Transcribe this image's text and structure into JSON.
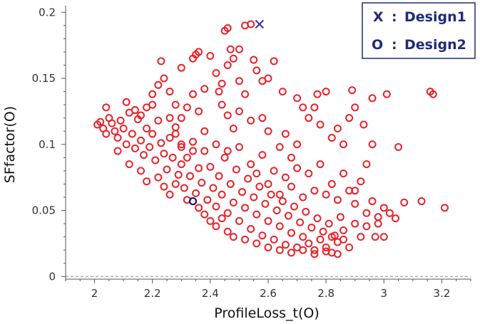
{
  "chart_data": {
    "type": "scatter",
    "xlabel": "ProfileLoss_t(O)",
    "ylabel": "SFfactor(O)",
    "xlim": [
      1.9,
      3.3
    ],
    "ylim": [
      -0.002,
      0.205
    ],
    "xticks": [
      2,
      2.2,
      2.4,
      2.6,
      2.8,
      3,
      3.2
    ],
    "yticks": [
      0,
      0.05,
      0.1,
      0.15,
      0.2
    ],
    "grid": false,
    "legend_position": "top-right",
    "legend": [
      {
        "symbol": "X",
        "separator": ":",
        "label": "Design1"
      },
      {
        "symbol": "O",
        "separator": ":",
        "label": "Design2"
      }
    ],
    "colors": {
      "cloud": "#e8232a",
      "design1": "#2e2e9a",
      "design2": "#16166e"
    },
    "series": [
      {
        "name": "Design1",
        "marker": "x",
        "points": [
          [
            2.57,
            0.191
          ]
        ]
      },
      {
        "name": "Design2",
        "marker": "o",
        "points": [
          [
            2.34,
            0.057
          ]
        ]
      },
      {
        "name": "Samples",
        "marker": "o",
        "points": [
          [
            2.01,
            0.115
          ],
          [
            2.02,
            0.117
          ],
          [
            2.03,
            0.112
          ],
          [
            2.04,
            0.128
          ],
          [
            2.05,
            0.12
          ],
          [
            2.04,
            0.108
          ],
          [
            2.06,
            0.116
          ],
          [
            2.07,
            0.11
          ],
          [
            2.08,
            0.105
          ],
          [
            2.09,
            0.118
          ],
          [
            2.1,
            0.112
          ],
          [
            2.11,
            0.132
          ],
          [
            2.12,
            0.124
          ],
          [
            2.11,
            0.1
          ],
          [
            2.13,
            0.108
          ],
          [
            2.14,
            0.097
          ],
          [
            2.15,
            0.119
          ],
          [
            2.16,
            0.103
          ],
          [
            2.17,
            0.092
          ],
          [
            2.18,
            0.112
          ],
          [
            2.19,
            0.098
          ],
          [
            2.2,
            0.13
          ],
          [
            2.21,
            0.088
          ],
          [
            2.2,
            0.108
          ],
          [
            2.22,
            0.118
          ],
          [
            2.23,
            0.101
          ],
          [
            2.24,
            0.093
          ],
          [
            2.25,
            0.081
          ],
          [
            2.26,
            0.105
          ],
          [
            2.27,
            0.09
          ],
          [
            2.28,
            0.113
          ],
          [
            2.29,
            0.077
          ],
          [
            2.3,
            0.098
          ],
          [
            2.3,
            0.085
          ],
          [
            2.31,
            0.067
          ],
          [
            2.32,
            0.09
          ],
          [
            2.33,
            0.076
          ],
          [
            2.34,
            0.102
          ],
          [
            2.35,
            0.063
          ],
          [
            2.36,
            0.082
          ],
          [
            2.37,
            0.071
          ],
          [
            2.38,
            0.095
          ],
          [
            2.39,
            0.058
          ],
          [
            2.4,
            0.083
          ],
          [
            2.41,
            0.067
          ],
          [
            2.42,
            0.053
          ],
          [
            2.43,
            0.076
          ],
          [
            2.44,
            0.062
          ],
          [
            2.45,
            0.09
          ],
          [
            2.46,
            0.048
          ],
          [
            2.47,
            0.07
          ],
          [
            2.48,
            0.056
          ],
          [
            2.49,
            0.081
          ],
          [
            2.5,
            0.042
          ],
          [
            2.51,
            0.064
          ],
          [
            2.52,
            0.052
          ],
          [
            2.53,
            0.074
          ],
          [
            2.54,
            0.036
          ],
          [
            2.55,
            0.06
          ],
          [
            2.56,
            0.047
          ],
          [
            2.57,
            0.068
          ],
          [
            2.58,
            0.031
          ],
          [
            2.59,
            0.055
          ],
          [
            2.6,
            0.042
          ],
          [
            2.61,
            0.062
          ],
          [
            2.62,
            0.028
          ],
          [
            2.63,
            0.05
          ],
          [
            2.64,
            0.038
          ],
          [
            2.65,
            0.057
          ],
          [
            2.66,
            0.024
          ],
          [
            2.67,
            0.046
          ],
          [
            2.68,
            0.033
          ],
          [
            2.69,
            0.053
          ],
          [
            2.7,
            0.022
          ],
          [
            2.71,
            0.041
          ],
          [
            2.72,
            0.03
          ],
          [
            2.73,
            0.049
          ],
          [
            2.74,
            0.025
          ],
          [
            2.75,
            0.037
          ],
          [
            2.76,
            0.02
          ],
          [
            2.77,
            0.044
          ],
          [
            2.78,
            0.028
          ],
          [
            2.79,
            0.034
          ],
          [
            2.8,
            0.022
          ],
          [
            2.81,
            0.04
          ],
          [
            2.82,
            0.018
          ],
          [
            2.83,
            0.031
          ],
          [
            2.84,
            0.026
          ],
          [
            2.85,
            0.045
          ],
          [
            2.86,
            0.028
          ],
          [
            2.08,
            0.095
          ],
          [
            2.12,
            0.085
          ],
          [
            2.16,
            0.08
          ],
          [
            2.18,
            0.072
          ],
          [
            2.22,
            0.075
          ],
          [
            2.24,
            0.068
          ],
          [
            2.26,
            0.062
          ],
          [
            2.28,
            0.07
          ],
          [
            2.32,
            0.058
          ],
          [
            2.36,
            0.052
          ],
          [
            2.38,
            0.047
          ],
          [
            2.4,
            0.042
          ],
          [
            2.42,
            0.038
          ],
          [
            2.44,
            0.044
          ],
          [
            2.46,
            0.034
          ],
          [
            2.48,
            0.03
          ],
          [
            2.52,
            0.028
          ],
          [
            2.56,
            0.025
          ],
          [
            2.6,
            0.022
          ],
          [
            2.64,
            0.02
          ],
          [
            2.68,
            0.018
          ],
          [
            2.72,
            0.02
          ],
          [
            2.76,
            0.017
          ],
          [
            2.8,
            0.019
          ],
          [
            2.84,
            0.017
          ],
          [
            2.88,
            0.022
          ],
          [
            2.22,
            0.145
          ],
          [
            2.24,
            0.15
          ],
          [
            2.26,
            0.14
          ],
          [
            2.28,
            0.13
          ],
          [
            2.3,
            0.12
          ],
          [
            2.32,
            0.128
          ],
          [
            2.34,
            0.138
          ],
          [
            2.36,
            0.125
          ],
          [
            2.38,
            0.11
          ],
          [
            2.2,
            0.138
          ],
          [
            2.18,
            0.128
          ],
          [
            2.16,
            0.122
          ],
          [
            2.14,
            0.126
          ],
          [
            2.23,
            0.163
          ],
          [
            2.3,
            0.158
          ],
          [
            2.34,
            0.165
          ],
          [
            2.35,
            0.168
          ],
          [
            2.36,
            0.17
          ],
          [
            2.38,
            0.142
          ],
          [
            2.4,
            0.167
          ],
          [
            2.42,
            0.154
          ],
          [
            2.43,
            0.14
          ],
          [
            2.44,
            0.146
          ],
          [
            2.45,
            0.186
          ],
          [
            2.46,
            0.188
          ],
          [
            2.47,
            0.172
          ],
          [
            2.48,
            0.165
          ],
          [
            2.46,
            0.16
          ],
          [
            2.5,
            0.172
          ],
          [
            2.52,
            0.19
          ],
          [
            2.54,
            0.191
          ],
          [
            2.55,
            0.164
          ],
          [
            2.56,
            0.156
          ],
          [
            2.58,
            0.148
          ],
          [
            2.6,
            0.15
          ],
          [
            2.62,
            0.163
          ],
          [
            2.65,
            0.14
          ],
          [
            2.7,
            0.135
          ],
          [
            2.5,
            0.148
          ],
          [
            2.52,
            0.138
          ],
          [
            2.44,
            0.13
          ],
          [
            2.46,
            0.122
          ],
          [
            2.48,
            0.112
          ],
          [
            2.5,
            0.125
          ],
          [
            2.54,
            0.118
          ],
          [
            2.58,
            0.12
          ],
          [
            2.6,
            0.11
          ],
          [
            2.64,
            0.098
          ],
          [
            2.66,
            0.108
          ],
          [
            2.68,
            0.09
          ],
          [
            2.7,
            0.1
          ],
          [
            2.72,
            0.128
          ],
          [
            2.74,
            0.12
          ],
          [
            2.76,
            0.128
          ],
          [
            2.78,
            0.115
          ],
          [
            2.77,
            0.138
          ],
          [
            2.8,
            0.14
          ],
          [
            2.82,
            0.105
          ],
          [
            2.84,
            0.112
          ],
          [
            2.86,
            0.1
          ],
          [
            2.88,
            0.12
          ],
          [
            2.9,
            0.128
          ],
          [
            2.89,
            0.141
          ],
          [
            2.93,
            0.115
          ],
          [
            2.96,
            0.135
          ],
          [
            3.01,
            0.138
          ],
          [
            3.16,
            0.14
          ],
          [
            3.17,
            0.138
          ],
          [
            2.26,
            0.12
          ],
          [
            2.28,
            0.108
          ],
          [
            2.3,
            0.1
          ],
          [
            2.34,
            0.095
          ],
          [
            2.42,
            0.1
          ],
          [
            2.46,
            0.095
          ],
          [
            2.5,
            0.098
          ],
          [
            2.54,
            0.085
          ],
          [
            2.58,
            0.092
          ],
          [
            2.62,
            0.08
          ],
          [
            2.66,
            0.075
          ],
          [
            2.7,
            0.082
          ],
          [
            2.74,
            0.078
          ],
          [
            2.78,
            0.085
          ],
          [
            2.82,
            0.07
          ],
          [
            2.86,
            0.078
          ],
          [
            2.9,
            0.065
          ],
          [
            2.94,
            0.085
          ],
          [
            2.96,
            0.1
          ],
          [
            3.05,
            0.098
          ],
          [
            2.92,
            0.072
          ],
          [
            2.88,
            0.065
          ],
          [
            2.84,
            0.058
          ],
          [
            2.8,
            0.062
          ],
          [
            2.76,
            0.065
          ],
          [
            2.72,
            0.06
          ],
          [
            2.68,
            0.068
          ],
          [
            2.64,
            0.062
          ],
          [
            2.6,
            0.07
          ],
          [
            2.56,
            0.078
          ],
          [
            2.9,
            0.055
          ],
          [
            2.94,
            0.048
          ],
          [
            2.96,
            0.057
          ],
          [
            2.98,
            0.045
          ],
          [
            3.0,
            0.052
          ],
          [
            3.02,
            0.048
          ],
          [
            3.04,
            0.044
          ],
          [
            3.07,
            0.056
          ],
          [
            3.13,
            0.057
          ],
          [
            3.21,
            0.052
          ],
          [
            2.92,
            0.03
          ],
          [
            2.97,
            0.03
          ],
          [
            3.0,
            0.03
          ],
          [
            2.9,
            0.04
          ],
          [
            2.86,
            0.035
          ],
          [
            2.82,
            0.03
          ],
          [
            2.94,
            0.038
          ],
          [
            2.98,
            0.04
          ]
        ]
      }
    ]
  }
}
